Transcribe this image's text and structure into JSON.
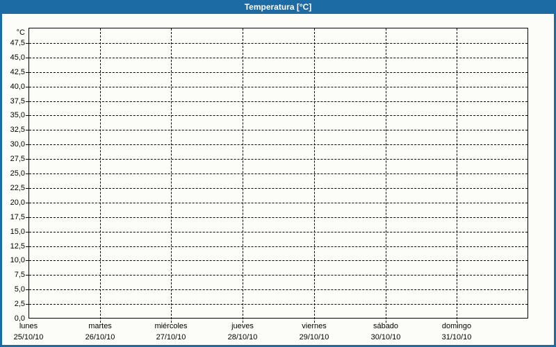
{
  "title_bar": {
    "title": "Temperatura [°C]"
  },
  "colors": {
    "accent_blue": "#1d6ba4",
    "background": "#fcfdf8",
    "grid": "#000000",
    "title_text": "#ffffff"
  },
  "chart_data": {
    "type": "line",
    "title": "Temperatura [°C]",
    "series": [],
    "grid": true,
    "legend_position": "none",
    "y_axis": {
      "unit_label": "°C",
      "min": 0,
      "max": 50,
      "tick_step": 2.5,
      "ticks": [
        {
          "value": 0,
          "label": "0,0"
        },
        {
          "value": 2.5,
          "label": "2,5"
        },
        {
          "value": 5,
          "label": "5,0"
        },
        {
          "value": 7.5,
          "label": "7,5"
        },
        {
          "value": 10,
          "label": "10,0"
        },
        {
          "value": 12.5,
          "label": "12,5"
        },
        {
          "value": 15,
          "label": "15,0"
        },
        {
          "value": 17.5,
          "label": "17,5"
        },
        {
          "value": 20,
          "label": "20,0"
        },
        {
          "value": 22.5,
          "label": "22,5"
        },
        {
          "value": 25,
          "label": "25,0"
        },
        {
          "value": 27.5,
          "label": "27,5"
        },
        {
          "value": 30,
          "label": "30,0"
        },
        {
          "value": 32.5,
          "label": "32,5"
        },
        {
          "value": 35,
          "label": "35,0"
        },
        {
          "value": 37.5,
          "label": "37,5"
        },
        {
          "value": 40,
          "label": "40,0"
        },
        {
          "value": 42.5,
          "label": "42,5"
        },
        {
          "value": 45,
          "label": "45,0"
        },
        {
          "value": 47.5,
          "label": "47,5"
        }
      ]
    },
    "x_axis": {
      "days": [
        {
          "name": "lunes",
          "date": "25/10/10"
        },
        {
          "name": "martes",
          "date": "26/10/10"
        },
        {
          "name": "miércoles",
          "date": "27/10/10"
        },
        {
          "name": "jueves",
          "date": "28/10/10"
        },
        {
          "name": "viernes",
          "date": "29/10/10"
        },
        {
          "name": "sábado",
          "date": "30/10/10"
        },
        {
          "name": "domingo",
          "date": "31/10/10"
        }
      ]
    }
  }
}
